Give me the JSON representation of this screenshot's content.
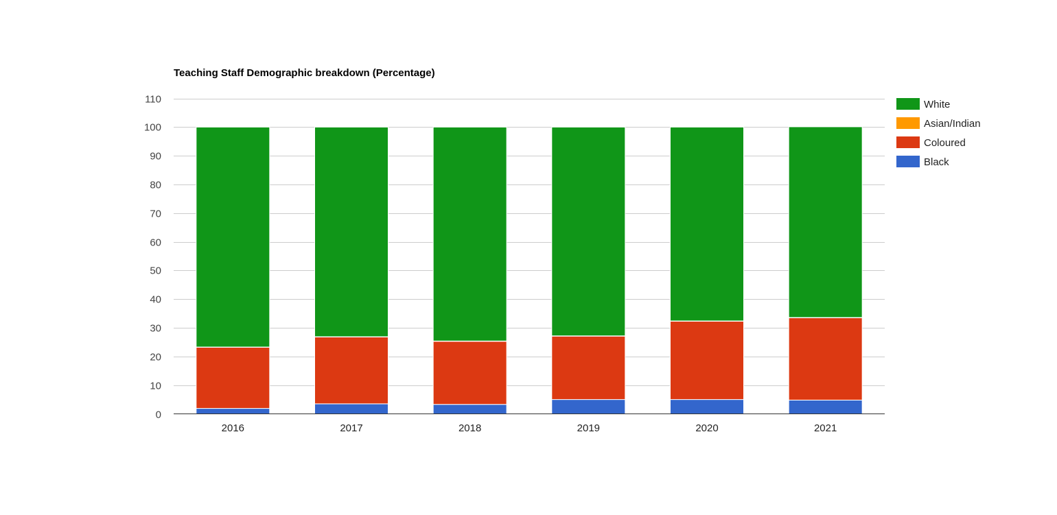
{
  "chart_data": {
    "type": "bar",
    "stacked": true,
    "title": "Teaching Staff Demographic breakdown (Percentage)",
    "categories": [
      "2016",
      "2017",
      "2018",
      "2019",
      "2020",
      "2021"
    ],
    "series": [
      {
        "name": "Black",
        "color": "#3366cc",
        "values": [
          1.9,
          3.5,
          3.3,
          5.0,
          5.0,
          4.8
        ]
      },
      {
        "name": "Coloured",
        "color": "#dc3912",
        "values": [
          21.3,
          23.3,
          22.0,
          22.1,
          27.3,
          28.7
        ]
      },
      {
        "name": "Asian/Indian",
        "color": "#ff9900",
        "values": [
          0.1,
          0.1,
          0.1,
          0.1,
          0.1,
          0.1
        ]
      },
      {
        "name": "White",
        "color": "#109618",
        "values": [
          76.7,
          73.1,
          74.6,
          72.8,
          67.6,
          66.5
        ]
      }
    ],
    "legend": {
      "position": "right",
      "order": [
        "White",
        "Asian/Indian",
        "Coloured",
        "Black"
      ]
    },
    "ylim": [
      0,
      110
    ],
    "yticks": [
      "0",
      "10",
      "20",
      "30",
      "40",
      "50",
      "60",
      "70",
      "80",
      "90",
      "100",
      "110"
    ],
    "grid": true,
    "xlabel": "",
    "ylabel": ""
  }
}
